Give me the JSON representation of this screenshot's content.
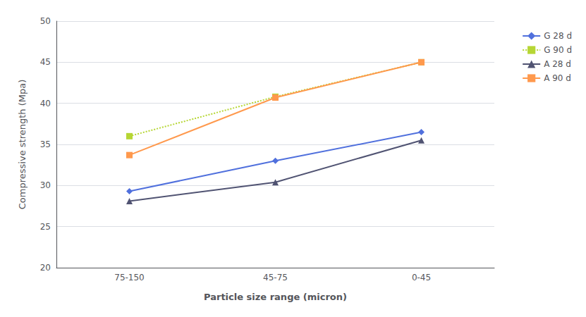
{
  "chart_data": {
    "type": "line",
    "xlabel": "Particle size range (micron)",
    "ylabel": "Compressive strength (Mpa)",
    "categories": [
      "75-150",
      "45-75",
      "0-45"
    ],
    "series": [
      {
        "name": "G 28 d",
        "values": [
          29.3,
          33.0,
          36.5
        ],
        "marker": "diamond",
        "line_style": "solid"
      },
      {
        "name": "G 90 d",
        "values": [
          36.0,
          40.8,
          45.0
        ],
        "marker": "square",
        "line_style": "dotted"
      },
      {
        "name": "A 28 d",
        "values": [
          28.1,
          30.4,
          35.5
        ],
        "marker": "triangle",
        "line_style": "solid"
      },
      {
        "name": "A 90 d",
        "values": [
          33.7,
          40.7,
          45.0
        ],
        "marker": "square",
        "line_style": "solid"
      }
    ],
    "ylim": [
      20,
      50
    ],
    "yticks": [
      20,
      25,
      30,
      35,
      40,
      45,
      50
    ],
    "grid": true,
    "legend": "right"
  }
}
